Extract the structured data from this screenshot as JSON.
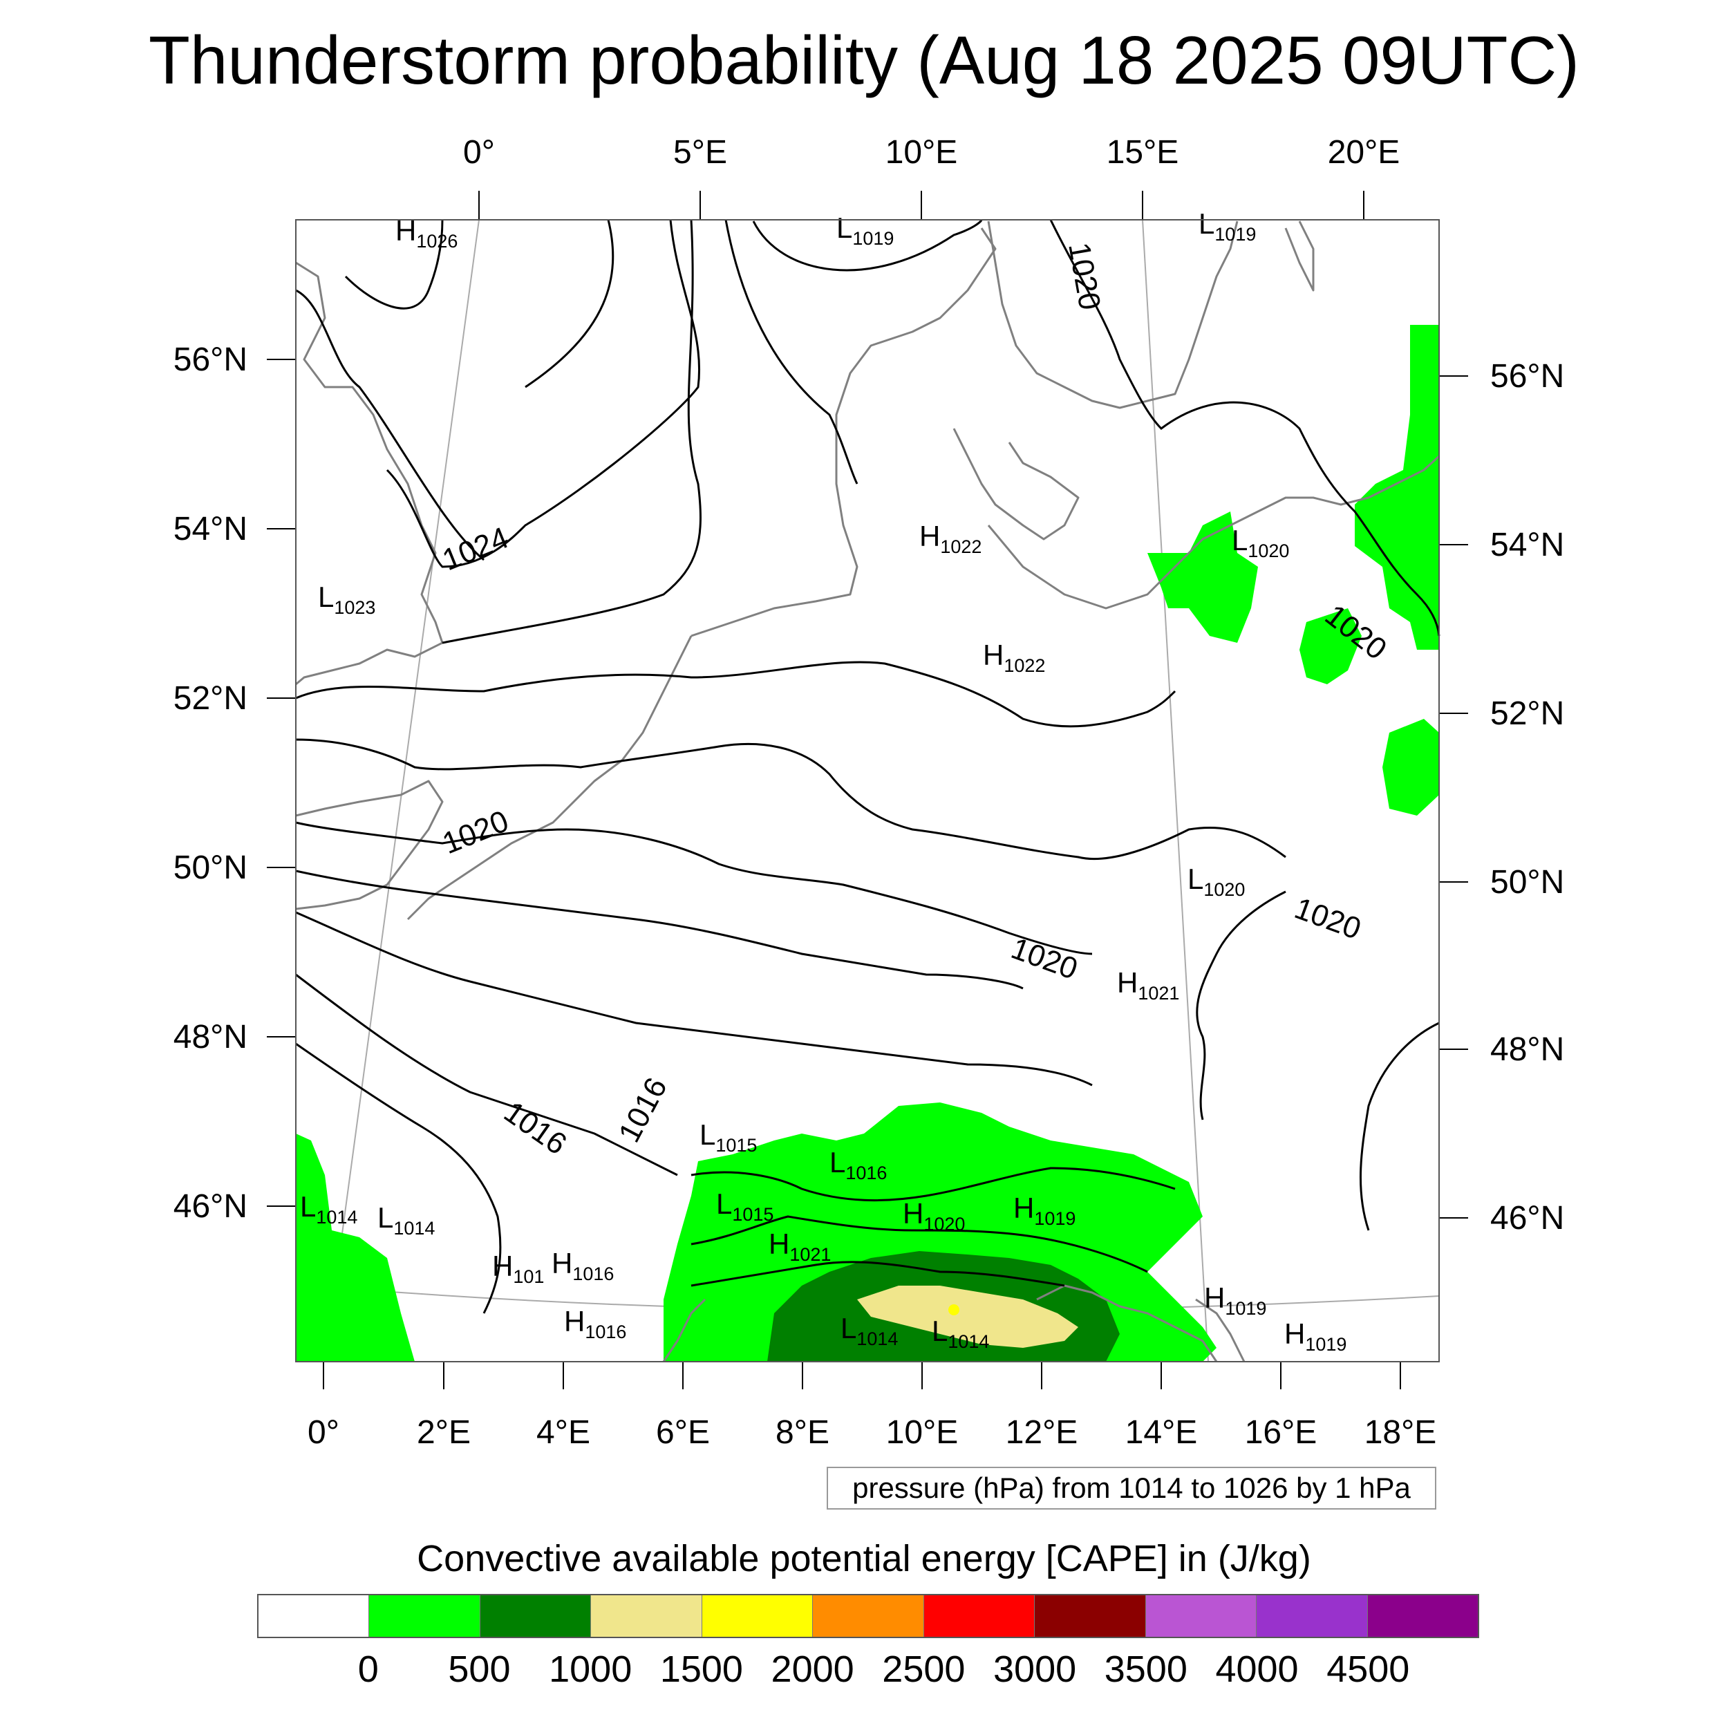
{
  "title": "Thunderstorm probability (Aug 18 2025 09UTC)",
  "axes": {
    "top_lon": [
      "0°",
      "5°E",
      "10°E",
      "15°E",
      "20°E"
    ],
    "bottom_lon": [
      "0°",
      "2°E",
      "4°E",
      "6°E",
      "8°E",
      "10°E",
      "12°E",
      "14°E",
      "16°E",
      "18°E"
    ],
    "left_lat": [
      "56°N",
      "54°N",
      "52°N",
      "50°N",
      "48°N",
      "46°N"
    ],
    "right_lat": [
      "56°N",
      "54°N",
      "52°N",
      "50°N",
      "48°N",
      "46°N"
    ]
  },
  "map": {
    "pressure_labels": [
      {
        "type": "H",
        "value": "1026"
      },
      {
        "type": "L",
        "value": "1019"
      },
      {
        "type": "L",
        "value": "1019"
      },
      {
        "type": "L",
        "value": "1023"
      },
      {
        "type": "H",
        "value": "1022"
      },
      {
        "type": "L",
        "value": "1020"
      },
      {
        "type": "H",
        "value": "1022"
      },
      {
        "type": "L",
        "value": "1020"
      },
      {
        "type": "H",
        "value": "1021"
      },
      {
        "type": "L",
        "value": "1015"
      },
      {
        "type": "L",
        "value": "1016"
      },
      {
        "type": "L",
        "value": "1015"
      },
      {
        "type": "H",
        "value": "1020"
      },
      {
        "type": "H",
        "value": "1019"
      },
      {
        "type": "H",
        "value": "1021"
      },
      {
        "type": "L",
        "value": "1014"
      },
      {
        "type": "L",
        "value": "1014"
      },
      {
        "type": "H",
        "value": "101"
      },
      {
        "type": "H",
        "value": "1016"
      },
      {
        "type": "H",
        "value": "1016"
      },
      {
        "type": "L",
        "value": "1014"
      },
      {
        "type": "L",
        "value": "1014"
      },
      {
        "type": "H",
        "value": "1019"
      },
      {
        "type": "H",
        "value": "1019"
      }
    ],
    "contour_labels": [
      "1024",
      "1020",
      "1020",
      "1020",
      "1020",
      "1020",
      "1016",
      "1016"
    ]
  },
  "pressure_note": "pressure (hPa) from 1014 to 1026 by 1 hPa",
  "cape": {
    "title": "Convective available potential energy [CAPE] in (J/kg)",
    "colors": [
      "#ffffff",
      "#00ff00",
      "#008000",
      "#f0e68c",
      "#ffff00",
      "#ff8c00",
      "#ff0000",
      "#8b0000",
      "#ba55d3",
      "#9932cc",
      "#8b008b"
    ],
    "labels": [
      "0",
      "500",
      "1000",
      "1500",
      "2000",
      "2500",
      "3000",
      "3500",
      "4000",
      "4500"
    ]
  }
}
